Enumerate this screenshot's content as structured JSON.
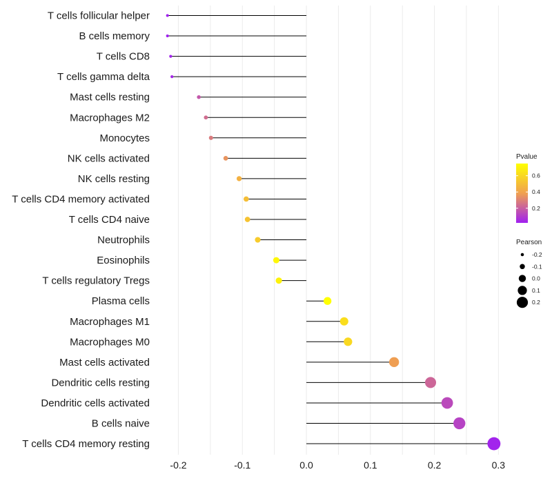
{
  "chart_data": {
    "type": "lollipop",
    "categories": [
      "T cells follicular helper",
      "B cells memory",
      "T cells CD8",
      "T cells gamma delta",
      "Mast cells resting",
      "Macrophages M2",
      "Monocytes",
      "NK cells activated",
      "NK cells resting",
      "T cells CD4 memory activated",
      "T cells CD4 naive",
      "Neutrophils",
      "Eosinophils",
      "T cells regulatory  Tregs",
      "Plasma cells",
      "Macrophages M1",
      "Macrophages M0",
      "Mast cells activated",
      "Dendritic cells resting",
      "Dendritic cells activated",
      "B cells naive",
      "T cells CD4 memory resting"
    ],
    "pearson": [
      -0.217,
      -0.217,
      -0.212,
      -0.21,
      -0.168,
      -0.157,
      -0.149,
      -0.126,
      -0.105,
      -0.094,
      -0.092,
      -0.076,
      -0.047,
      -0.043,
      0.033,
      0.059,
      0.065,
      0.137,
      0.194,
      0.22,
      0.239,
      0.293
    ],
    "pvalue": [
      0.02,
      0.02,
      0.03,
      0.04,
      0.18,
      0.24,
      0.28,
      0.35,
      0.45,
      0.5,
      0.52,
      0.55,
      0.72,
      0.7,
      0.75,
      0.62,
      0.6,
      0.38,
      0.22,
      0.14,
      0.12,
      0.03
    ],
    "xlim": [
      -0.235,
      0.305
    ],
    "xticks": [
      -0.2,
      -0.1,
      0.0,
      0.1,
      0.2,
      0.3
    ],
    "xtick_labels": [
      "-0.2",
      "-0.1",
      "0.0",
      "0.1",
      "0.2",
      "0.3"
    ],
    "grid": true,
    "color_legend": {
      "title": "Pvalue",
      "range": [
        0.02,
        0.75
      ],
      "ticks": [
        0.2,
        0.4,
        0.6
      ],
      "tick_labels": [
        "0.2",
        "0.4",
        "0.6"
      ],
      "colors": [
        "#a020f0",
        "#f0a050",
        "#ffff00"
      ]
    },
    "size_legend": {
      "title": "Pearson",
      "values": [
        -0.2,
        -0.1,
        0.0,
        0.1,
        0.2
      ],
      "labels": [
        "-0.2",
        "-0.1",
        "0.0",
        "0.1",
        "0.2"
      ]
    }
  }
}
